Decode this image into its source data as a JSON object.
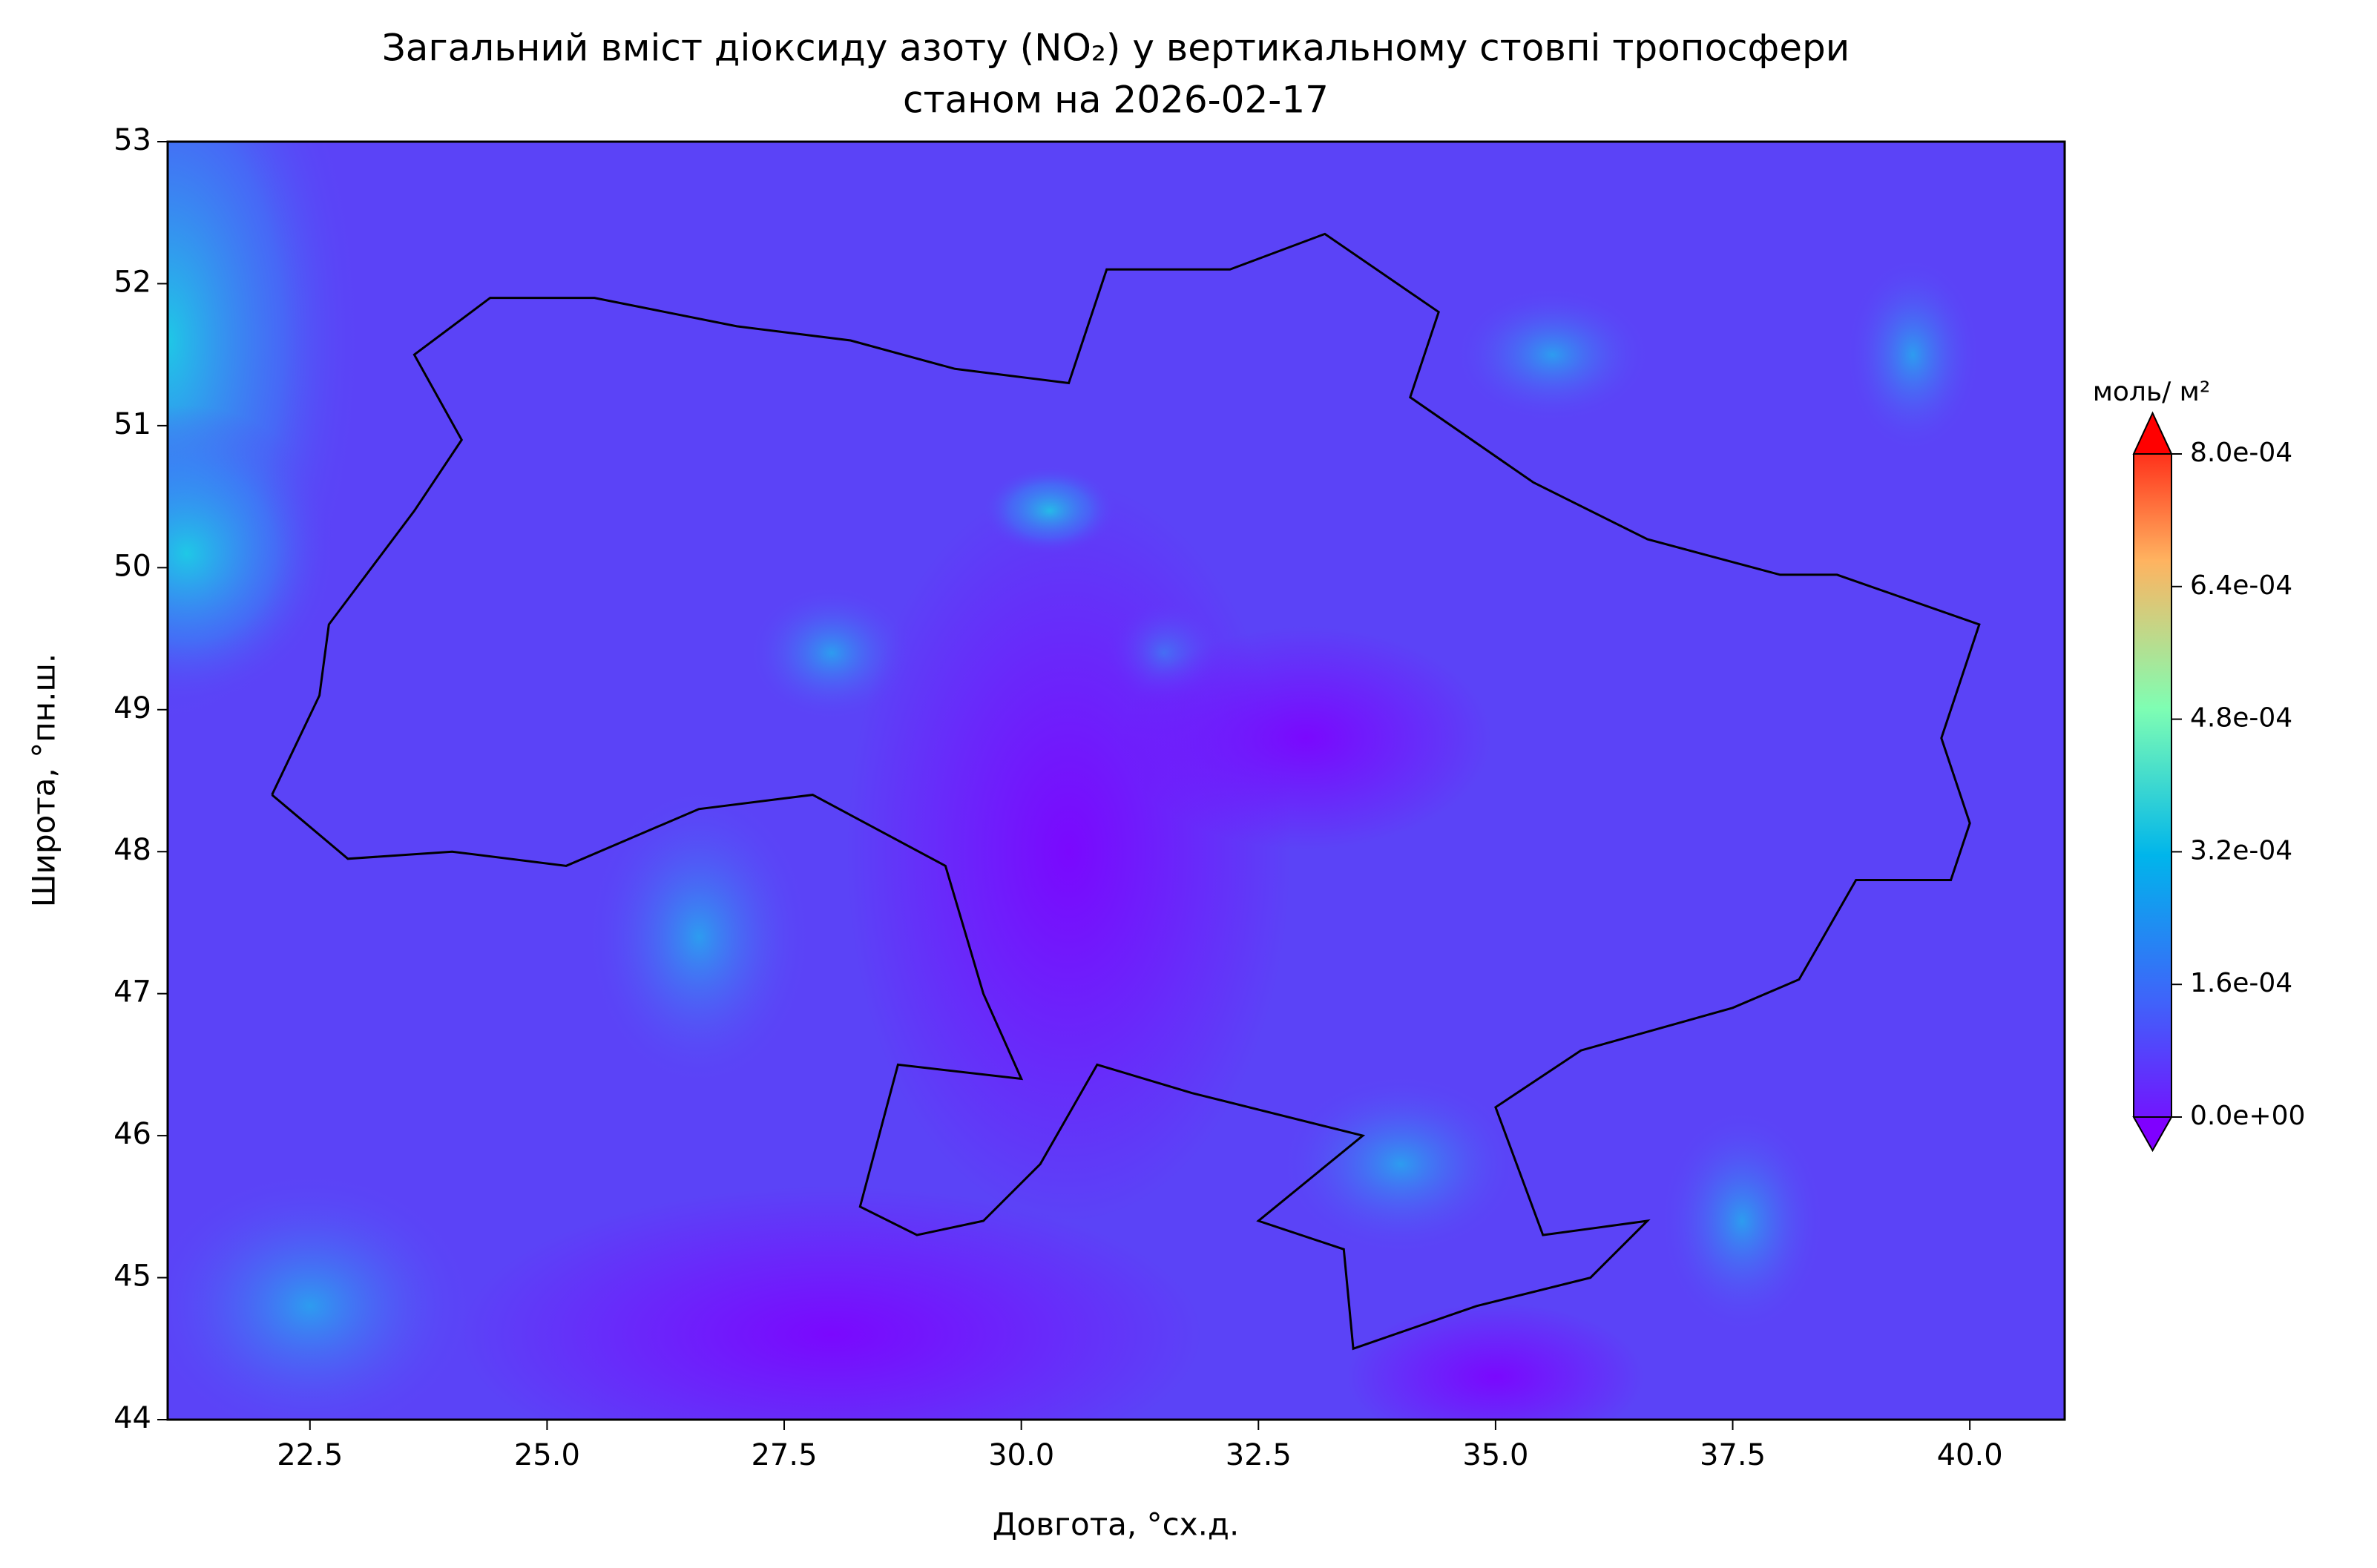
{
  "chart_data": {
    "type": "contour",
    "title": "Загальний вміст діоксиду азоту (NO₂) у вертикальному стовпі тропосфери",
    "subtitle": "станом на 2026-02-17",
    "xlabel": "Довгота, °сх.д.",
    "ylabel": "Широта, °пн.ш.",
    "xlim": [
      21,
      41
    ],
    "ylim": [
      44,
      53
    ],
    "xticks": [
      22.5,
      {
        "value": 25,
        "label": "25.0"
      },
      27.5,
      {
        "value": 30,
        "label": "30.0"
      },
      32.5,
      {
        "value": 35,
        "label": "35.0"
      },
      37.5,
      {
        "value": 40,
        "label": "40.0"
      }
    ],
    "yticks": [
      44,
      45,
      46,
      47,
      48,
      49,
      50,
      51,
      52,
      53
    ],
    "colorbar": {
      "label": "моль/ м²",
      "lim": [
        0,
        0.0008
      ],
      "ticks": [
        {
          "value": 0,
          "label": "0.0e+00"
        },
        {
          "value": 0.00016,
          "label": "1.6e-04"
        },
        {
          "value": 0.00032,
          "label": "3.2e-04"
        },
        {
          "value": 0.00048,
          "label": "4.8e-04"
        },
        {
          "value": 0.00064,
          "label": "6.4e-04"
        },
        {
          "value": 0.0008,
          "label": "8.0e-04"
        }
      ]
    }
  }
}
